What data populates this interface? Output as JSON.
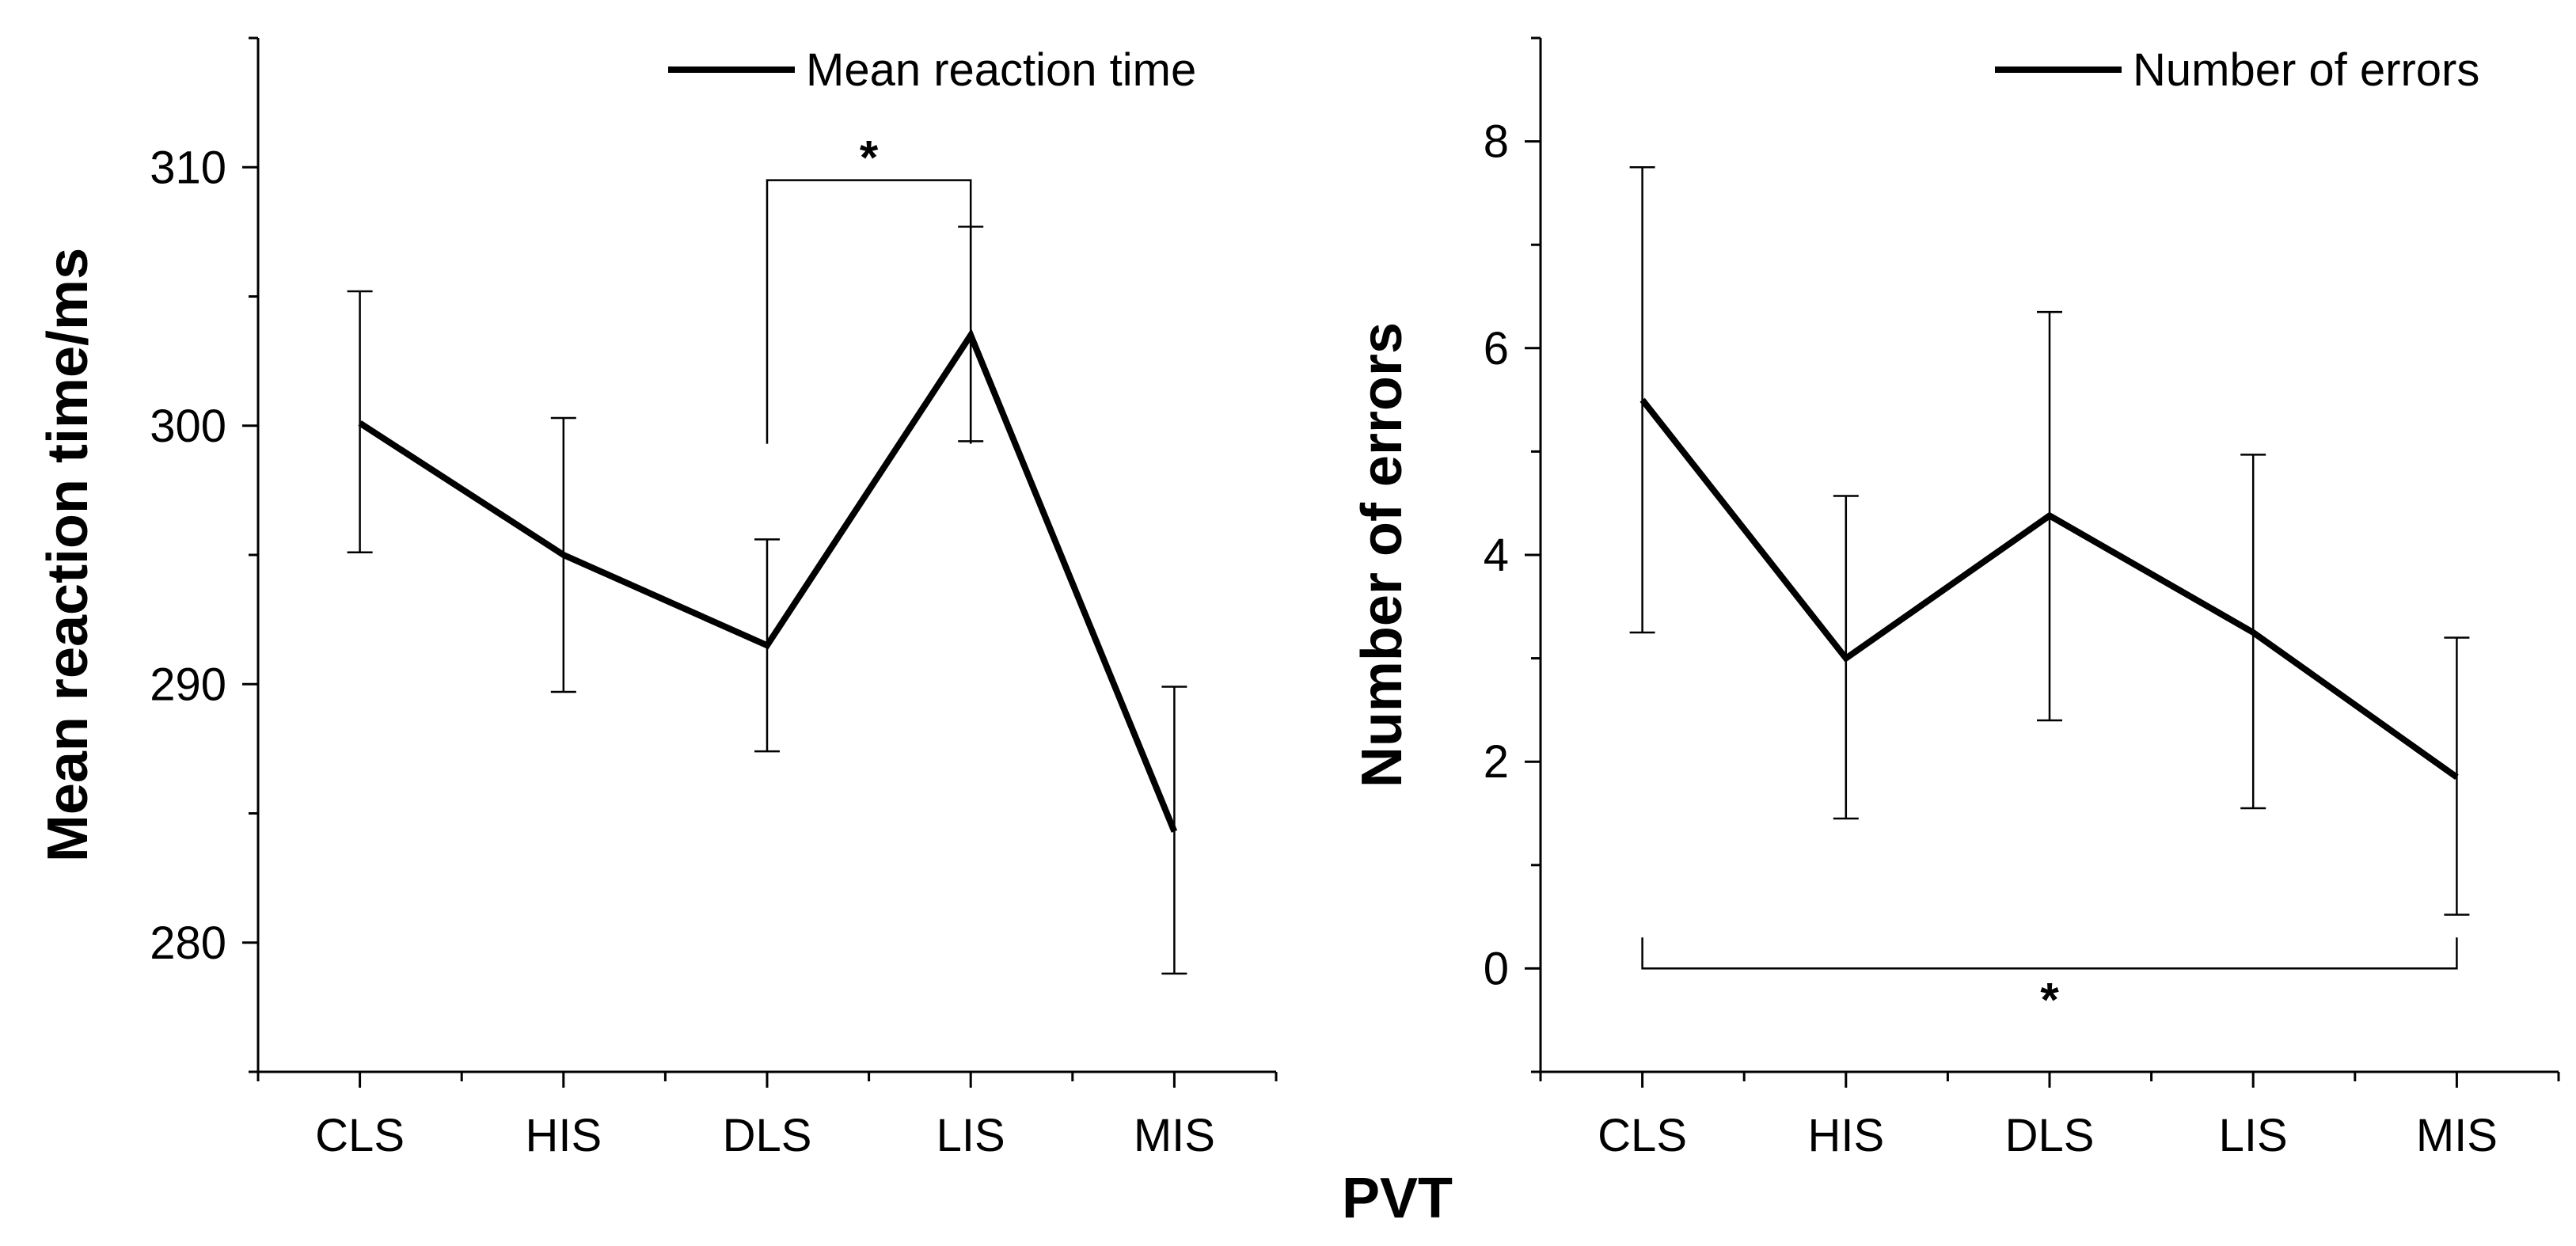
{
  "figure": {
    "shared_xlabel": "PVT"
  },
  "chart_data": [
    {
      "type": "line",
      "title": "",
      "xlabel": "",
      "ylabel": "Mean reaction time/ms",
      "categories": [
        "CLS",
        "HIS",
        "DLS",
        "LIS",
        "MIS"
      ],
      "ylim": [
        275,
        315
      ],
      "yticks": [
        280,
        290,
        300,
        310
      ],
      "yticks_minor": [
        275,
        285,
        295,
        305,
        315
      ],
      "grid": false,
      "legend": {
        "position": "top-right",
        "entries": [
          "Mean reaction time"
        ]
      },
      "series": [
        {
          "name": "Mean reaction time",
          "values": [
            300.1,
            295.0,
            291.5,
            303.5,
            284.3
          ],
          "err_low": [
            295.1,
            289.7,
            287.4,
            299.4,
            278.8
          ],
          "err_high": [
            305.2,
            300.3,
            295.6,
            307.7,
            289.9
          ]
        }
      ],
      "significance": [
        {
          "from": "DLS",
          "to": "LIS",
          "label": "*",
          "y": 309.5,
          "stub": 299.3,
          "placement": "above"
        }
      ]
    },
    {
      "type": "line",
      "title": "",
      "xlabel": "",
      "ylabel": "Number of errors",
      "categories": [
        "CLS",
        "HIS",
        "DLS",
        "LIS",
        "MIS"
      ],
      "ylim": [
        -1,
        9
      ],
      "yticks": [
        0,
        2,
        4,
        6,
        8
      ],
      "yticks_minor": [
        -1,
        1,
        3,
        5,
        7,
        9
      ],
      "grid": false,
      "legend": {
        "position": "top-right",
        "entries": [
          "Number of errors"
        ]
      },
      "series": [
        {
          "name": "Number of errors",
          "values": [
            5.5,
            3.0,
            4.38,
            3.25,
            1.85
          ],
          "err_low": [
            3.25,
            1.45,
            2.4,
            1.55,
            0.52
          ],
          "err_high": [
            7.75,
            4.57,
            6.35,
            4.97,
            3.2
          ]
        }
      ],
      "significance": [
        {
          "from": "CLS",
          "to": "MIS",
          "label": "*",
          "y": 0.0,
          "stub": 0.3,
          "placement": "below"
        }
      ]
    }
  ]
}
